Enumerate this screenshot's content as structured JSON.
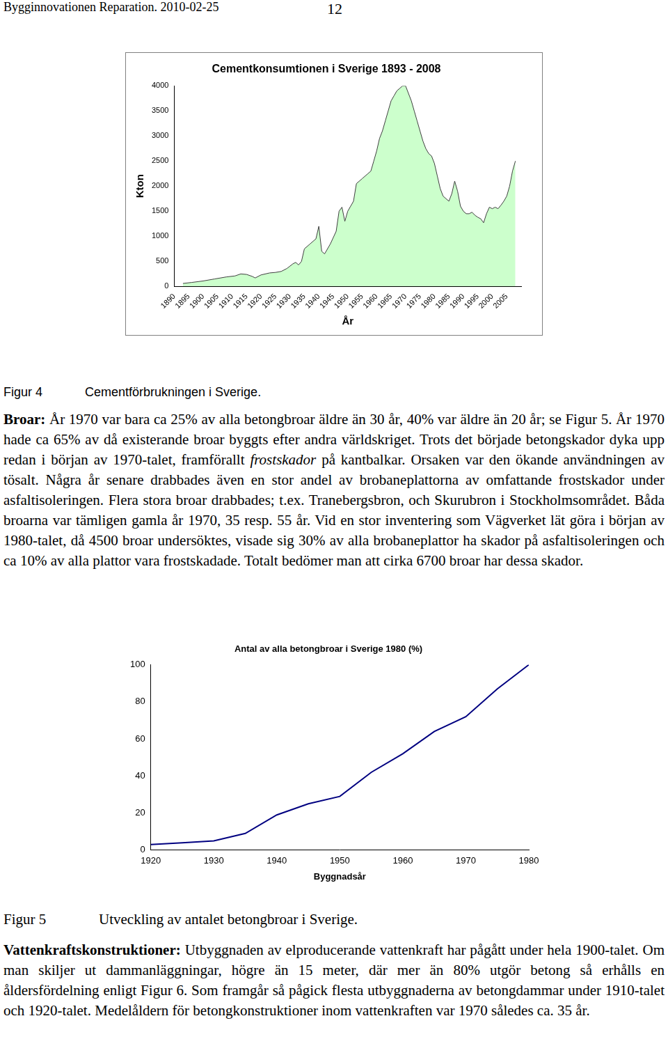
{
  "header": {
    "left": "Bygginnovationen Reparation. 2010-02-25",
    "page": "12"
  },
  "chart_data": [
    {
      "type": "area",
      "title": "Cementkonsumtionen i Sverige 1893 - 2008",
      "x_label": "År",
      "y_label": "Kton",
      "x": [
        1893,
        1896,
        1900,
        1904,
        1908,
        1911,
        1913,
        1915,
        1917,
        1918,
        1920,
        1923,
        1925,
        1927,
        1929,
        1931,
        1932,
        1933,
        1934,
        1935,
        1937,
        1939,
        1940,
        1941,
        1942,
        1944,
        1946,
        1947,
        1948,
        1949,
        1950,
        1951,
        1952,
        1953,
        1955,
        1957,
        1958,
        1959,
        1960,
        1961,
        1962,
        1963,
        1964,
        1965,
        1966,
        1967,
        1968,
        1969,
        1970,
        1971,
        1972,
        1973,
        1974,
        1975,
        1976,
        1977,
        1978,
        1979,
        1980,
        1981,
        1982,
        1983,
        1984,
        1985,
        1986,
        1987,
        1988,
        1989,
        1990,
        1991,
        1992,
        1993,
        1994,
        1995,
        1996,
        1997,
        1998,
        1999,
        2000,
        2001,
        2002,
        2003,
        2004,
        2005,
        2006,
        2007,
        2008
      ],
      "values": [
        60,
        80,
        110,
        150,
        190,
        210,
        250,
        240,
        200,
        170,
        230,
        270,
        280,
        300,
        360,
        450,
        480,
        430,
        500,
        750,
        850,
        950,
        1200,
        700,
        650,
        850,
        1100,
        1500,
        1580,
        1300,
        1500,
        1600,
        1700,
        2050,
        2150,
        2250,
        2300,
        2500,
        2700,
        2950,
        3100,
        3300,
        3500,
        3700,
        3800,
        3900,
        3950,
        4000,
        4000,
        3850,
        3700,
        3500,
        3300,
        3100,
        2900,
        2750,
        2650,
        2600,
        2450,
        2200,
        1950,
        1800,
        1750,
        1700,
        1850,
        2100,
        1900,
        1600,
        1500,
        1450,
        1450,
        1480,
        1420,
        1380,
        1350,
        1270,
        1450,
        1580,
        1550,
        1580,
        1550,
        1620,
        1700,
        1800,
        2000,
        2300,
        2500
      ],
      "color": "#ccffcc",
      "xlim": [
        1890,
        2010
      ],
      "xticks": [
        1890,
        1895,
        1900,
        1905,
        1910,
        1915,
        1920,
        1925,
        1930,
        1935,
        1940,
        1945,
        1950,
        1955,
        1960,
        1965,
        1970,
        1975,
        1980,
        1985,
        1990,
        1995,
        2000,
        2005
      ],
      "ylim": [
        0,
        4000
      ],
      "yticks": [
        0,
        500,
        1000,
        1500,
        2000,
        2500,
        3000,
        3500,
        4000
      ],
      "grid": false
    },
    {
      "type": "line",
      "title": "Antal av alla betongbroar i Sverige 1980 (%)",
      "x_label": "Byggnadsår",
      "x": [
        1920,
        1925,
        1930,
        1935,
        1940,
        1945,
        1950,
        1955,
        1960,
        1965,
        1970,
        1975,
        1980
      ],
      "values": [
        3,
        4,
        5,
        9,
        19,
        25,
        29,
        42,
        52,
        64,
        72,
        87,
        100
      ],
      "color": "#000080",
      "xlim": [
        1920,
        1980
      ],
      "xticks": [
        1920,
        1930,
        1940,
        1950,
        1960,
        1970,
        1980
      ],
      "ylim": [
        0,
        100
      ],
      "yticks": [
        0,
        20,
        40,
        60,
        80,
        100
      ],
      "grid": false
    }
  ],
  "figures": [
    {
      "label": "Figur 4",
      "caption": "Cementförbrukningen i Sverige."
    },
    {
      "label": "Figur 5",
      "caption": "Utveckling av antalet betongbroar i Sverige."
    }
  ],
  "paragraphs": [
    [
      {
        "text": "Broar:",
        "style": "bold"
      },
      {
        "text": " År 1970 var bara ca 25% av alla betongbroar äldre än 30 år, 40% var äldre än 20 år; se Figur 5. År 1970 hade ca 65% av då existerande broar byggts efter andra världskriget. Trots det började betongskador dyka upp redan i början av 1970-talet, framförallt "
      },
      {
        "text": "frostskador",
        "style": "italic"
      },
      {
        "text": " på kantbalkar. Orsaken var den ökande användningen av tösalt. Några år senare drabbades även en stor andel av brobaneplattorna av omfattande frostskador under asfaltisoleringen. Flera stora broar drabbades; t.ex. Tranebergsbron, och Skurubron i Stockholmsområdet. Båda broarna var tämligen gamla år 1970, 35 resp. 55 år. Vid en stor inventering som Vägverket lät göra i början av 1980-talet, då 4500 broar undersöktes, visade sig 30% av alla brobaneplattor ha skador på asfaltisoleringen och ca 10% av alla plattor vara frostskadade. Totalt bedömer man att cirka 6700 broar har dessa skador."
      }
    ],
    [
      {
        "text": "Vattenkraftskonstruktioner:",
        "style": "bold"
      },
      {
        "text": " Utbyggnaden av elproducerande vattenkraft har pågått under hela 1900-talet. Om man skiljer ut dammanläggningar, högre än 15 meter, där mer än 80% utgör betong så erhålls en åldersfördelning enligt Figur 6. Som framgår så pågick flesta utbyggnaderna av betongdammar under 1910-talet och 1920-talet. Medelåldern för betongkonstruktioner inom vattenkraften var 1970 således ca. 35 år."
      }
    ]
  ]
}
